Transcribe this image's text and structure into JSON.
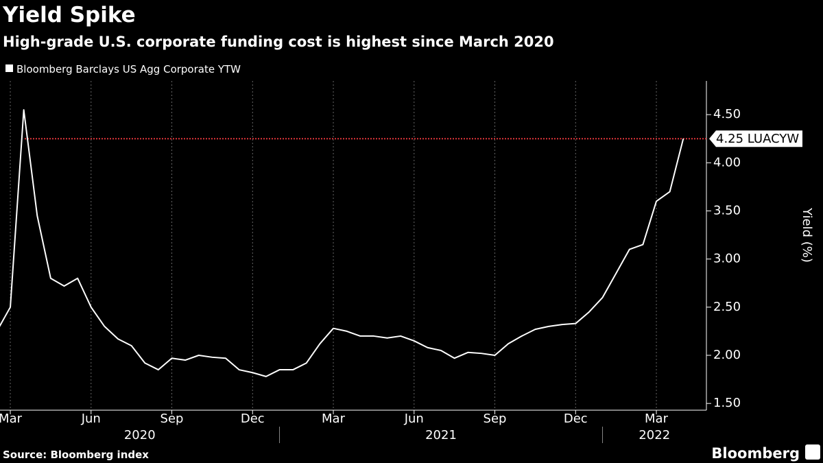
{
  "chart_data": {
    "type": "line",
    "title": "Yield Spike",
    "subtitle": "High-grade U.S. corporate funding cost is highest since March 2020",
    "y_label": "Yield (%)",
    "source": "Source: Bloomberg index",
    "brand": "Bloomberg",
    "categories": [
      null,
      "Mar",
      null,
      null,
      null,
      null,
      null,
      "Jun",
      null,
      null,
      null,
      null,
      null,
      "Sep",
      null,
      null,
      null,
      null,
      null,
      "Dec",
      null,
      null,
      null,
      null,
      null,
      "Mar",
      null,
      null,
      null,
      null,
      null,
      "Jun",
      null,
      null,
      null,
      null,
      null,
      "Sep",
      null,
      null,
      null,
      null,
      null,
      "Dec",
      null,
      null,
      null,
      null,
      null,
      "Mar",
      null,
      null
    ],
    "x_groups": [
      "2020",
      "2021",
      "2022"
    ],
    "series": [
      {
        "name": "Bloomberg Barclays US Agg Corporate YTW",
        "color": "#ffffff",
        "values": [
          2.25,
          2.5,
          4.55,
          3.45,
          2.8,
          2.72,
          2.8,
          2.5,
          2.3,
          2.17,
          2.1,
          1.92,
          1.85,
          1.97,
          1.95,
          2.0,
          1.98,
          1.97,
          1.85,
          1.82,
          1.78,
          1.85,
          1.85,
          1.92,
          2.12,
          2.28,
          2.25,
          2.2,
          2.2,
          2.18,
          2.2,
          2.15,
          2.08,
          2.05,
          1.97,
          2.03,
          2.02,
          2.0,
          2.12,
          2.2,
          2.27,
          2.3,
          2.32,
          2.33,
          2.45,
          2.6,
          2.85,
          3.1,
          3.15,
          3.6,
          3.7,
          4.25
        ]
      }
    ],
    "reference_line": {
      "value": 4.25,
      "color": "#e0353b",
      "label": "4.25 LUACYW"
    },
    "ylim": [
      1.43,
      4.85
    ],
    "yticks": [
      {
        "value": 1.5,
        "label": "1.50"
      },
      {
        "value": 2.0,
        "label": "2.00"
      },
      {
        "value": 2.5,
        "label": "2.50"
      },
      {
        "value": 3.0,
        "label": "3.00"
      },
      {
        "value": 3.5,
        "label": "3.50"
      },
      {
        "value": 4.0,
        "label": "4.00"
      },
      {
        "value": 4.5,
        "label": "4.50"
      }
    ],
    "grid": true
  }
}
